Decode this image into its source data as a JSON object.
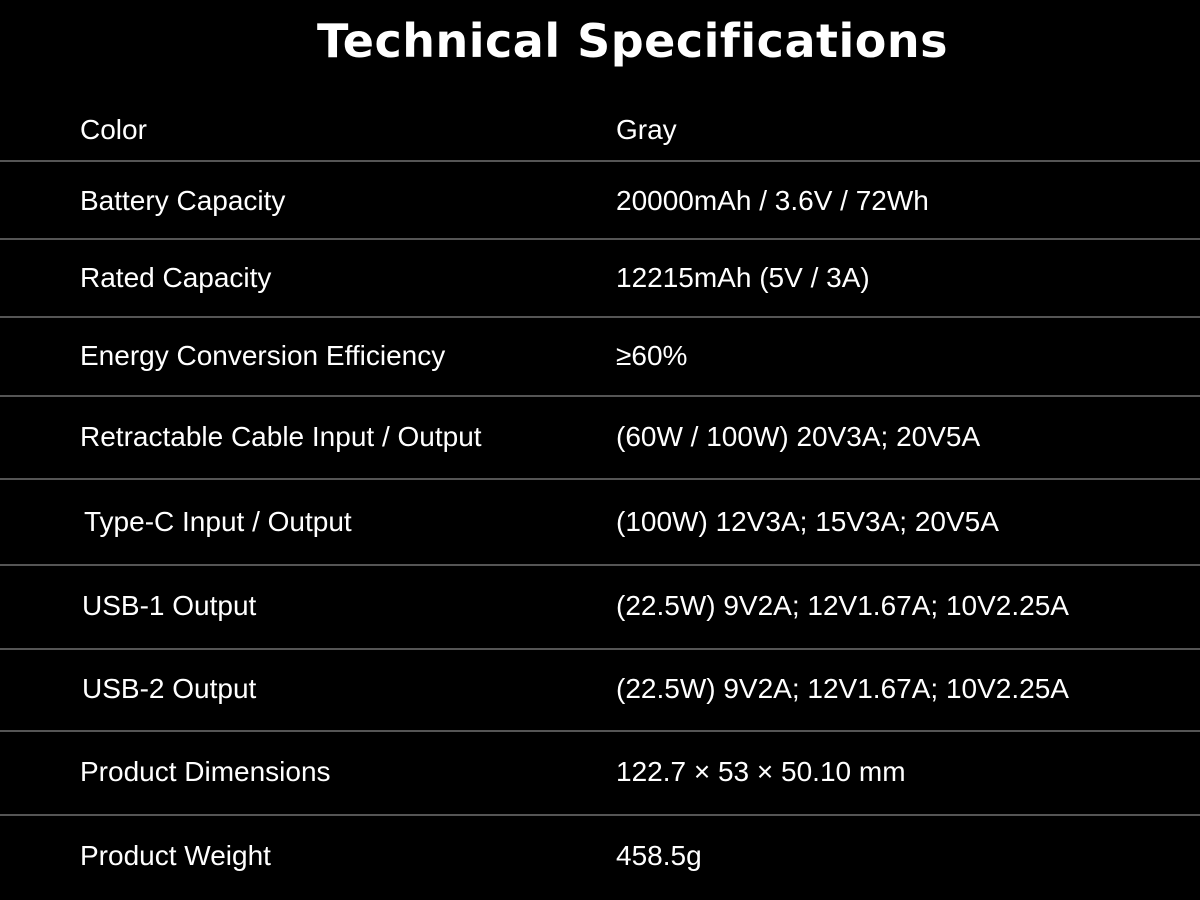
{
  "title": "Technical Specifications",
  "colors": {
    "background": "#000000",
    "text": "#ffffff",
    "divider": "#555555"
  },
  "specs": [
    {
      "label": "Color",
      "value": "Gray"
    },
    {
      "label": "Battery Capacity",
      "value": "20000mAh / 3.6V / 72Wh"
    },
    {
      "label": "Rated Capacity",
      "value": "12215mAh (5V / 3A)"
    },
    {
      "label": "Energy Conversion Efficiency",
      "value": "≥60%"
    },
    {
      "label": "Retractable Cable Input / Output",
      "value": "(60W / 100W) 20V3A; 20V5A"
    },
    {
      "label": "Type-C Input / Output",
      "value": "(100W) 12V3A; 15V3A; 20V5A"
    },
    {
      "label": "USB-1 Output",
      "value": "(22.5W) 9V2A; 12V1.67A; 10V2.25A"
    },
    {
      "label": "USB-2 Output",
      "value": "(22.5W) 9V2A; 12V1.67A; 10V2.25A"
    },
    {
      "label": "Product Dimensions",
      "value": "122.7 × 53 × 50.10 mm"
    },
    {
      "label": "Product Weight",
      "value": "458.5g"
    }
  ]
}
